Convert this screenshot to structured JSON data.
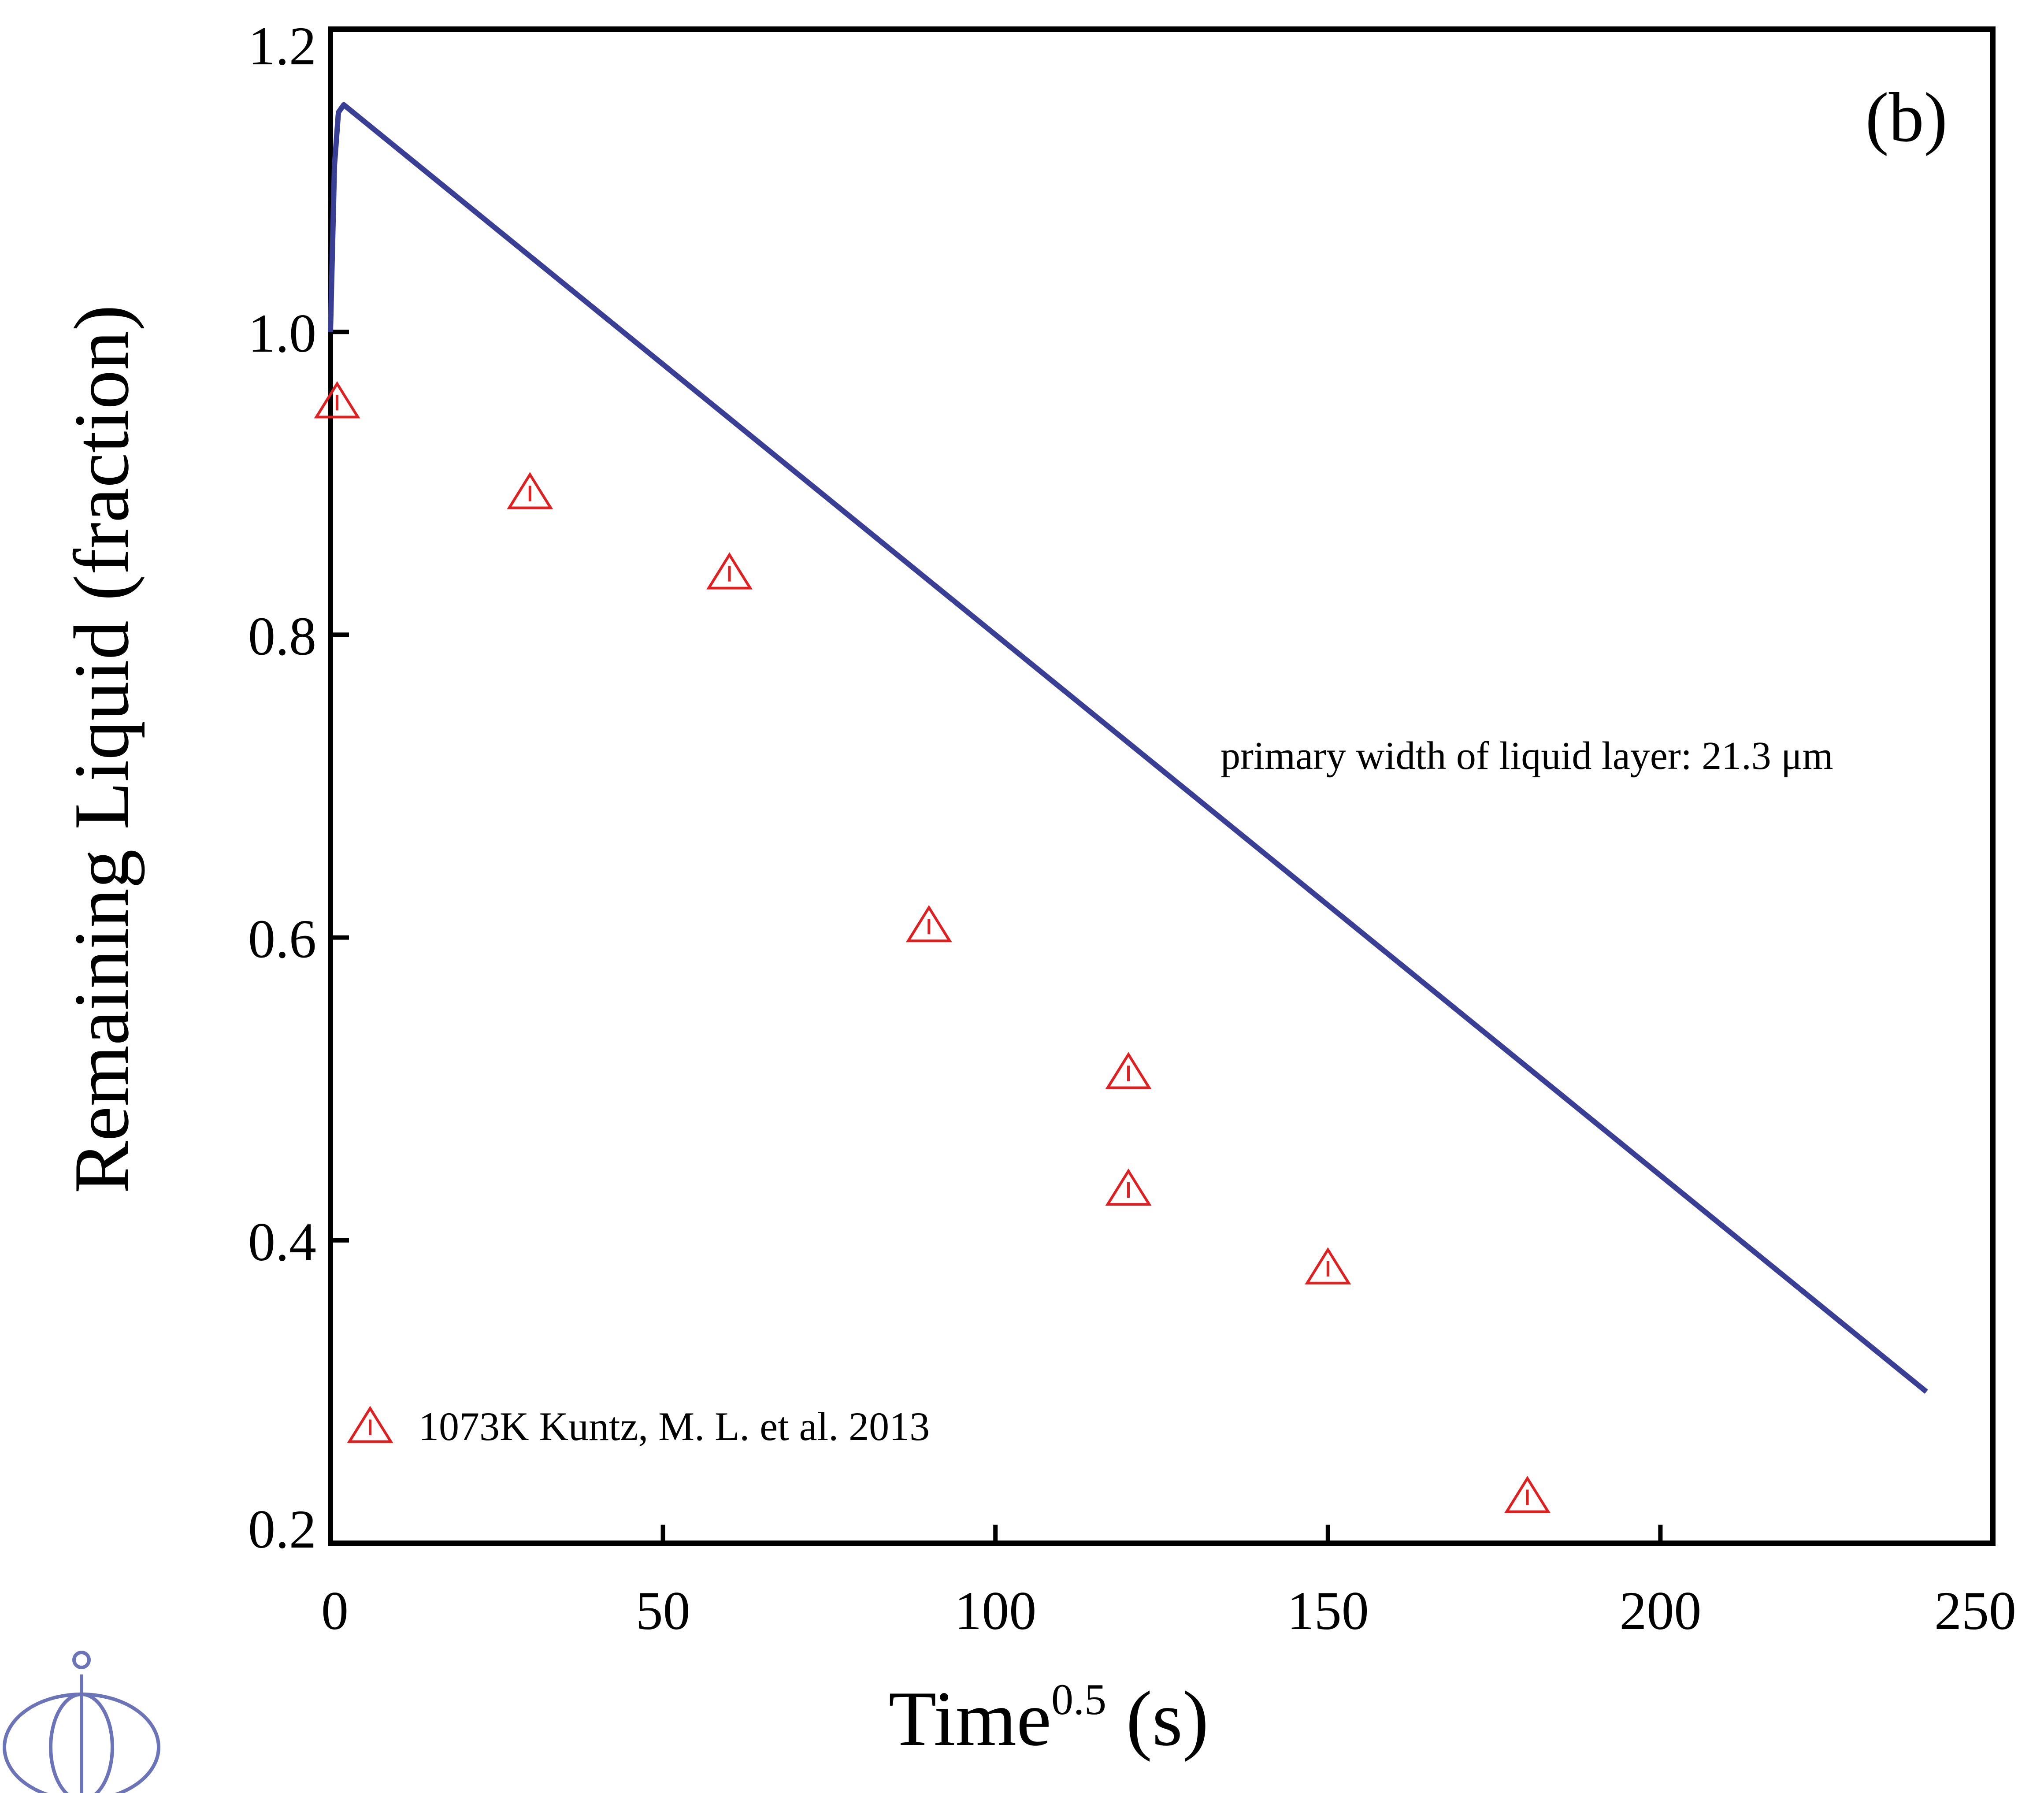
{
  "chart_data": {
    "type": "line",
    "panel_label": "(b)",
    "xlabel": {
      "text": "Time",
      "superscript": "0.5",
      "suffix": " (s)"
    },
    "ylabel": "Remaining Liquid (fraction)",
    "xlim": [
      0,
      250
    ],
    "ylim": [
      0.2,
      1.2
    ],
    "xticks": [
      "0",
      "50",
      "100",
      "150",
      "200",
      "250"
    ],
    "yticks": [
      "0.2",
      "0.4",
      "0.6",
      "0.8",
      "1.0",
      "1.2"
    ],
    "grid": false,
    "annotation": "primary width of liquid layer: 21.3 μm",
    "series": [
      {
        "kind": "line",
        "color": "#3a3f96",
        "x": [
          0,
          0.6,
          1.2,
          2,
          240
        ],
        "y": [
          1.0,
          1.11,
          1.145,
          1.15,
          0.3
        ]
      },
      {
        "kind": "scatter",
        "name": "1073K Kuntz, M. L. et al. 2013",
        "marker": "triangle-open",
        "color": "#e02020",
        "x": [
          1,
          30,
          60,
          90,
          120,
          120,
          150,
          180
        ],
        "y": [
          0.953,
          0.893,
          0.84,
          0.607,
          0.51,
          0.433,
          0.381,
          0.23
        ]
      }
    ],
    "legend_position": "bottom-left"
  },
  "logo": {
    "name": "publisher-logo-icon",
    "color": "#6b74b8"
  }
}
